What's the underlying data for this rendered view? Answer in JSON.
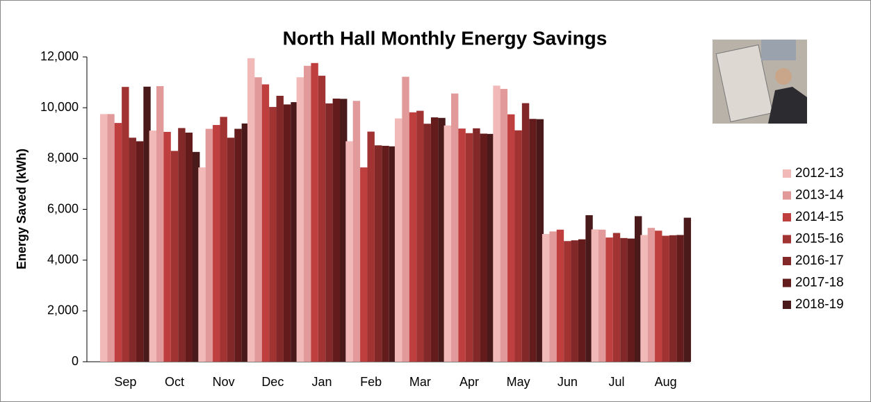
{
  "chart_data": {
    "type": "bar",
    "title": "North Hall Monthly Energy Savings",
    "y_label": "Energy Saved (kWh)",
    "categories": [
      "Sep",
      "Oct",
      "Nov",
      "Dec",
      "Jan",
      "Feb",
      "Mar",
      "Apr",
      "May",
      "Jun",
      "Jul",
      "Aug"
    ],
    "series": [
      {
        "name": "2012-13",
        "color": "#f2b9b9",
        "values": [
          9750,
          9100,
          7650,
          11950,
          11200,
          8680,
          9580,
          9300,
          10870,
          5030,
          5210,
          4990
        ]
      },
      {
        "name": "2013-14",
        "color": "#e19999",
        "values": [
          9750,
          10850,
          9170,
          11200,
          11650,
          10270,
          11220,
          10560,
          10740,
          5130,
          5200,
          5270
        ]
      },
      {
        "name": "2014-15",
        "color": "#bf3f3f",
        "values": [
          9400,
          9050,
          9320,
          10920,
          11760,
          7650,
          9820,
          9180,
          9740,
          5200,
          4890,
          5160
        ]
      },
      {
        "name": "2015-16",
        "color": "#a13333",
        "values": [
          10820,
          8300,
          9640,
          10030,
          11260,
          9060,
          9880,
          9000,
          9110,
          4750,
          5070,
          4960
        ]
      },
      {
        "name": "2016-17",
        "color": "#822828",
        "values": [
          8820,
          9200,
          8820,
          10470,
          10170,
          8520,
          9370,
          9190,
          10180,
          4780,
          4870,
          4980
        ]
      },
      {
        "name": "2017-18",
        "color": "#631b1b",
        "values": [
          8680,
          9020,
          9170,
          10130,
          10360,
          8500,
          9620,
          8980,
          9560,
          4820,
          4850,
          4990
        ]
      },
      {
        "name": "2018-19",
        "color": "#4a1a1a",
        "values": [
          10830,
          8260,
          9380,
          10220,
          10350,
          8480,
          9600,
          8970,
          9550,
          5770,
          5730,
          5670
        ]
      }
    ],
    "ylim": [
      0,
      12000
    ],
    "yticks": [
      0,
      {
        "value": 2000,
        "label": "2,000"
      },
      {
        "value": 4000,
        "label": "4,000"
      },
      {
        "value": 6000,
        "label": "6,000"
      },
      {
        "value": 8000,
        "label": "8,000"
      },
      {
        "value": 10000,
        "label": "10,000"
      },
      {
        "value": 12000,
        "label": "12,000"
      }
    ],
    "legend": "right"
  }
}
